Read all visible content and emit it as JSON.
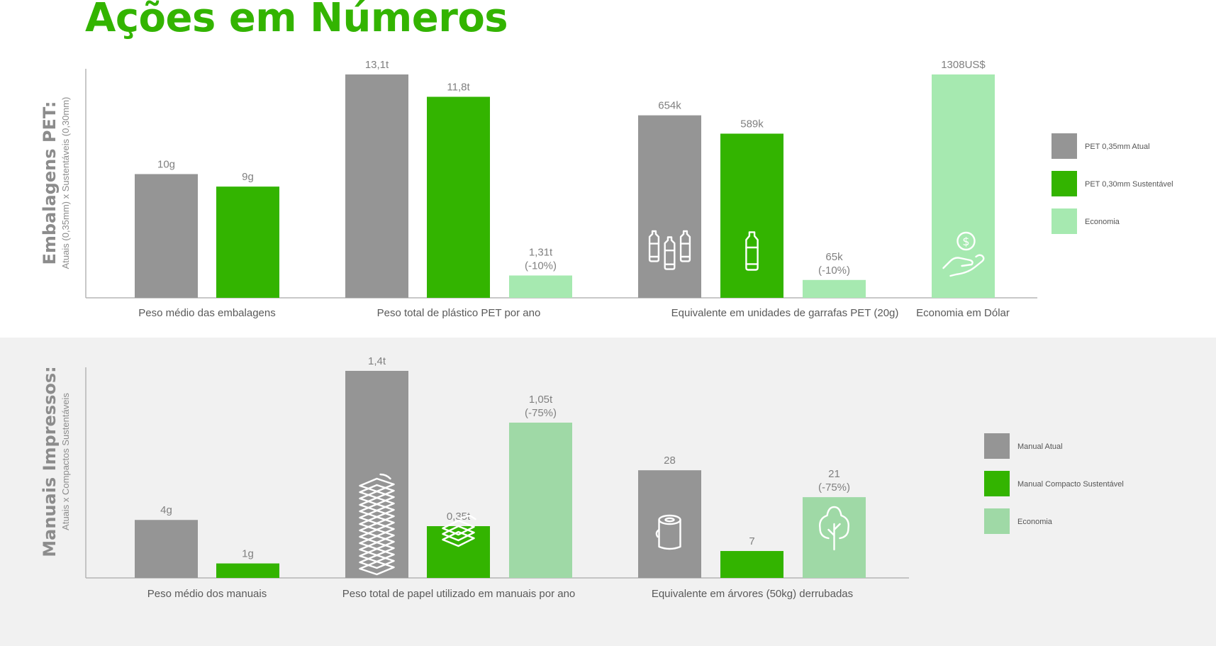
{
  "title": "Ações em Números",
  "colors": {
    "atual": "#959595",
    "sustentavel": "#33b400",
    "economia_top": "#a6e9b0",
    "economia_bottom": "#9fd9a6",
    "axis": "#b5b5b5",
    "title": "#33b400"
  },
  "chart_data": [
    {
      "type": "bar",
      "id": "embalagens",
      "section_title": "Embalagens PET:",
      "section_subtitle": "Atuais (0,35mm) x Sustentáveis (0,30mm)",
      "legend": [
        "PET 0,35mm Atual",
        "PET 0,30mm Sustentável",
        "Economia"
      ],
      "legend_placement": "right",
      "grid": false,
      "groups": [
        {
          "category": "Peso médio das embalagens",
          "bars": [
            {
              "series": "PET 0,35mm Atual",
              "label": "10g",
              "relative": 0.554
            },
            {
              "series": "PET 0,30mm Sustentável",
              "label": "9g",
              "relative": 0.498
            }
          ]
        },
        {
          "category": "Peso total de plástico PET por ano",
          "bars": [
            {
              "series": "PET 0,35mm Atual",
              "label": "13,1t",
              "relative": 1.0
            },
            {
              "series": "PET 0,30mm Sustentável",
              "label": "11,8t",
              "relative": 0.9
            },
            {
              "series": "Economia",
              "label": "1,31t",
              "label2": "(-10%)",
              "relative": 0.1
            }
          ]
        },
        {
          "category": "Equivalente em unidades de garrafas PET (20g)",
          "bars": [
            {
              "series": "PET 0,35mm Atual",
              "label": "654k",
              "relative": 0.817,
              "icon": "plastic-bottles-icon"
            },
            {
              "series": "PET 0,30mm Sustentável",
              "label": "589k",
              "relative": 0.735,
              "icon": "plastic-bottle-icon"
            },
            {
              "series": "Economia",
              "label": "65k",
              "label2": "(-10%)",
              "relative": 0.08
            }
          ]
        },
        {
          "category": "Economia em Dólar",
          "bars": [
            {
              "series": "Economia",
              "label": "1308US$",
              "relative": 1.0,
              "icon": "money-hand-icon"
            }
          ]
        }
      ]
    },
    {
      "type": "bar",
      "id": "manuais",
      "section_title": "Manuais Impressos:",
      "section_subtitle": "Atuais x Compactos Sustentáveis",
      "legend": [
        "Manual Atual",
        "Manual Compacto Sustentável",
        "Economia"
      ],
      "legend_placement": "right",
      "grid": false,
      "groups": [
        {
          "category": "Peso médio dos manuais",
          "bars": [
            {
              "series": "Manual Atual",
              "label": "4g",
              "relative": 0.28
            },
            {
              "series": "Manual Compacto Sustentável",
              "label": "1g",
              "relative": 0.07
            }
          ]
        },
        {
          "category": "Peso total de papel utilizado em manuais por ano",
          "bars": [
            {
              "series": "Manual Atual",
              "label": "1,4t",
              "relative": 1.0,
              "icon": "paper-stack-icon"
            },
            {
              "series": "Manual Compacto Sustentável",
              "label": "0,35t",
              "relative": 0.25,
              "icon": "paper-sheets-icon"
            },
            {
              "series": "Economia",
              "label": "1,05t",
              "label2": "(-75%)",
              "relative": 0.75
            }
          ]
        },
        {
          "category": "Equivalente em árvores (50kg) derrubadas",
          "bars": [
            {
              "series": "Manual Atual",
              "label": "28",
              "relative": 0.52,
              "icon": "tree-log-icon"
            },
            {
              "series": "Manual Compacto Sustentável",
              "label": "7",
              "relative": 0.13
            },
            {
              "series": "Economia",
              "label": "21",
              "label2": "(-75%)",
              "relative": 0.39,
              "icon": "tree-icon"
            }
          ]
        }
      ]
    }
  ]
}
